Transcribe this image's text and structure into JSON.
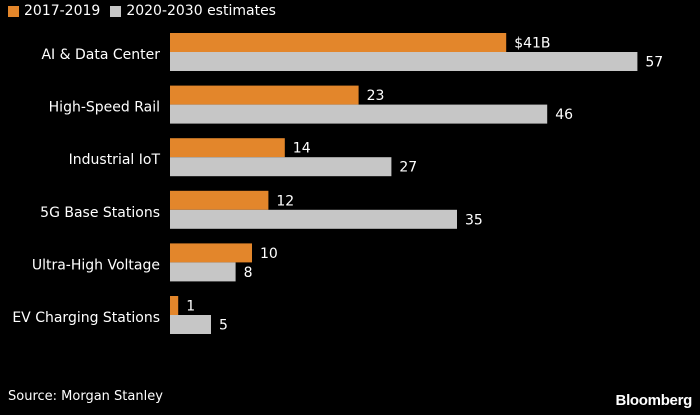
{
  "chart_data": {
    "type": "bar",
    "orientation": "horizontal",
    "categories": [
      "AI & Data Center",
      "High-Speed Rail",
      "Industrial IoT",
      "5G Base Stations",
      "Ultra-High Voltage",
      "EV Charging Stations"
    ],
    "series": [
      {
        "name": "2017-2019",
        "values": [
          41,
          23,
          14,
          12,
          10,
          1
        ],
        "labels": [
          "$41B",
          "23",
          "14",
          "12",
          "10",
          "1"
        ],
        "color": "#e3862b"
      },
      {
        "name": "2020-2030 estimates",
        "values": [
          57,
          46,
          27,
          35,
          8,
          5
        ],
        "labels": [
          "57",
          "46",
          "27",
          "35",
          "8",
          "5"
        ],
        "color": "#c6c6c6"
      }
    ],
    "xlim": [
      0,
      60
    ],
    "grid": false,
    "legend_position": "top-left"
  },
  "source": "Source: Morgan Stanley",
  "brand": "Bloomberg",
  "colors": {
    "background": "#000000",
    "text": "#ffffff"
  }
}
